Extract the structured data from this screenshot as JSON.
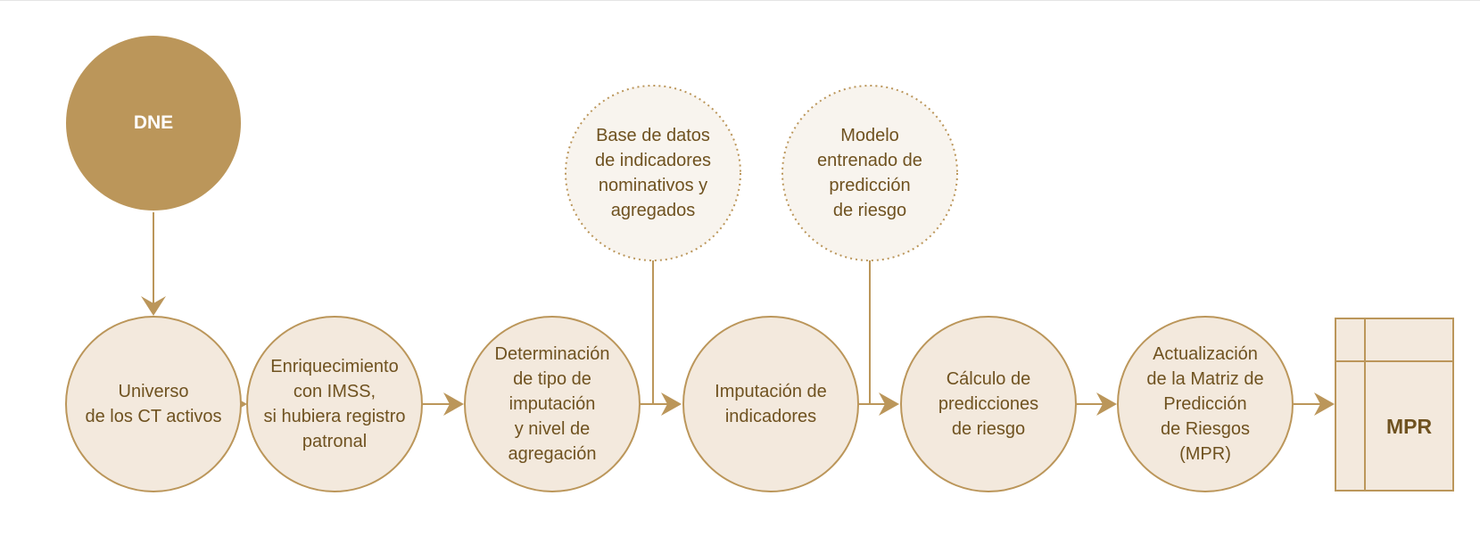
{
  "colors": {
    "accent": "#bb965a",
    "node_fill": "#f3e9dd",
    "source_fill": "#f8f4ee",
    "text": "#6f5220",
    "white": "#ffffff"
  },
  "nodes": {
    "dne": "DNE",
    "universo": "Universo\nde los CT activos",
    "enriquecimiento": "Enriquecimiento\ncon IMSS,\nsi hubiera registro\npatronal",
    "determinacion": "Determinación\nde tipo de\nimputación\ny nivel de\nagregación",
    "base_datos": "Base de datos\nde indicadores\nnominativos y\nagregados",
    "imputacion": "Imputación de\nindicadores",
    "modelo": "Modelo\nentrenado de\npredicción\nde riesgo",
    "calculo": "Cálculo de\npredicciones\nde riesgo",
    "actualizacion": "Actualización\nde la Matriz de\nPredicción\nde Riesgos\n(MPR)",
    "mpr": "MPR"
  }
}
